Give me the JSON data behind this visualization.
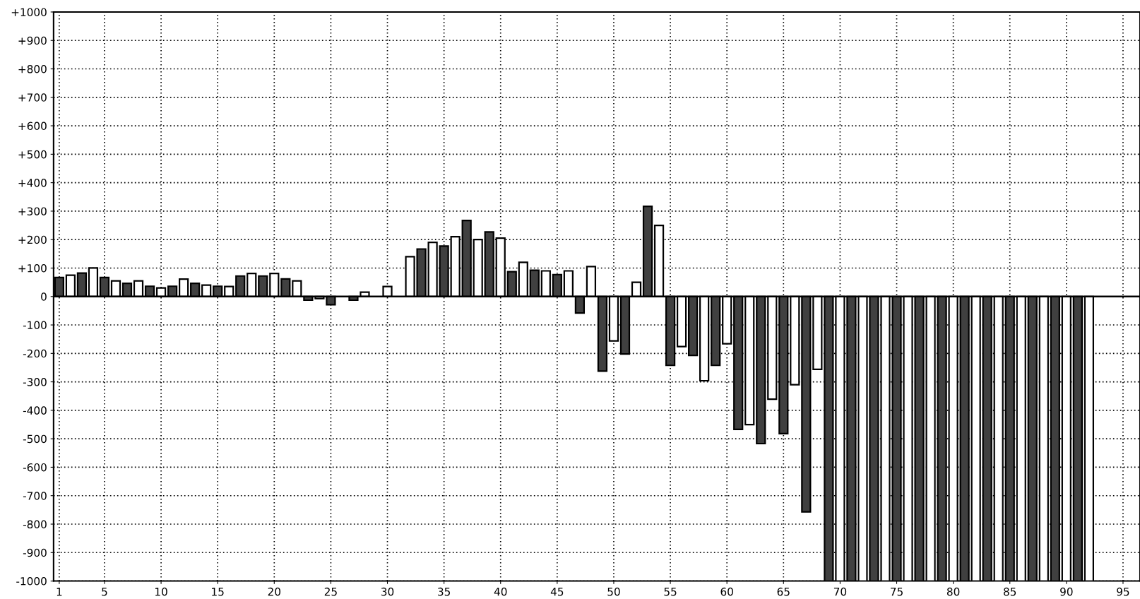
{
  "chart_data": {
    "type": "bar",
    "x": [
      1,
      2,
      3,
      4,
      5,
      6,
      7,
      8,
      9,
      10,
      11,
      12,
      13,
      14,
      15,
      16,
      17,
      18,
      19,
      20,
      21,
      22,
      23,
      24,
      25,
      26,
      27,
      28,
      29,
      30,
      31,
      32,
      33,
      34,
      35,
      36,
      37,
      38,
      39,
      40,
      41,
      42,
      43,
      44,
      45,
      46,
      47,
      48,
      49,
      50,
      51,
      52,
      53,
      54,
      55,
      56,
      57,
      58,
      59,
      60,
      61,
      62,
      63,
      64,
      65,
      66,
      67,
      68,
      69,
      70,
      71,
      72,
      73,
      74,
      75,
      76,
      77,
      78,
      79,
      80,
      81,
      82,
      83,
      84,
      85,
      86,
      87,
      88,
      89,
      90,
      91,
      92
    ],
    "values": [
      67,
      75,
      82,
      100,
      67,
      55,
      46,
      55,
      36,
      30,
      36,
      61,
      46,
      40,
      36,
      35,
      72,
      81,
      72,
      81,
      62,
      55,
      -13,
      -7,
      -29,
      null,
      -13,
      15,
      null,
      35,
      null,
      140,
      167,
      190,
      177,
      210,
      267,
      200,
      227,
      205,
      87,
      120,
      92,
      90,
      77,
      90,
      -58,
      105,
      -262,
      -156,
      -202,
      50,
      317,
      250,
      -242,
      -176,
      -207,
      -296,
      -242,
      -166,
      -467,
      -450,
      -517,
      -361,
      -482,
      -310,
      -757,
      -256,
      -1000,
      -1000,
      -1000,
      -1000,
      -1000,
      -1000,
      -1000,
      -1000,
      -1000,
      -1000,
      -1000,
      -1000,
      -1000,
      -1000,
      -1000,
      -1000,
      -1000,
      -1000,
      -1000,
      -1000,
      -1000,
      -1000,
      -1000,
      -1000
    ],
    "colors": [
      "#404040",
      "#ffffff",
      "#404040",
      "#ffffff",
      "#404040",
      "#ffffff",
      "#404040",
      "#ffffff",
      "#404040",
      "#ffffff",
      "#404040",
      "#ffffff",
      "#404040",
      "#ffffff",
      "#404040",
      "#ffffff",
      "#404040",
      "#ffffff",
      "#404040",
      "#ffffff",
      "#404040",
      "#ffffff",
      "#404040",
      "#ffffff",
      "#404040",
      "#ffffff",
      "#404040",
      "#ffffff",
      "#404040",
      "#ffffff",
      "#404040",
      "#ffffff",
      "#404040",
      "#ffffff",
      "#404040",
      "#ffffff",
      "#404040",
      "#ffffff",
      "#404040",
      "#ffffff",
      "#404040",
      "#ffffff",
      "#404040",
      "#ffffff",
      "#404040",
      "#ffffff",
      "#404040",
      "#ffffff",
      "#404040",
      "#ffffff",
      "#404040",
      "#ffffff",
      "#404040",
      "#ffffff",
      "#404040",
      "#ffffff",
      "#404040",
      "#ffffff",
      "#404040",
      "#ffffff",
      "#404040",
      "#ffffff",
      "#404040",
      "#ffffff",
      "#404040",
      "#ffffff",
      "#404040",
      "#ffffff",
      "#404040",
      "#ffffff",
      "#404040",
      "#ffffff",
      "#404040",
      "#ffffff",
      "#404040",
      "#ffffff",
      "#404040",
      "#ffffff",
      "#404040",
      "#ffffff",
      "#404040",
      "#ffffff",
      "#404040",
      "#ffffff",
      "#404040",
      "#ffffff",
      "#404040",
      "#ffffff",
      "#404040",
      "#ffffff",
      "#404040",
      "#ffffff"
    ],
    "xlim": [
      0.5,
      96.5
    ],
    "xticks": [
      1,
      5,
      10,
      15,
      20,
      25,
      30,
      35,
      40,
      45,
      50,
      55,
      60,
      65,
      70,
      75,
      80,
      85,
      90,
      95
    ],
    "ylim": [
      -1000,
      1000
    ],
    "yticks": [
      {
        "value": -1000,
        "label": "-1000"
      },
      {
        "value": -900,
        "label": "-900"
      },
      {
        "value": -800,
        "label": "-800"
      },
      {
        "value": -700,
        "label": "-700"
      },
      {
        "value": -600,
        "label": "-600"
      },
      {
        "value": -500,
        "label": "-500"
      },
      {
        "value": -400,
        "label": "-400"
      },
      {
        "value": -300,
        "label": "-300"
      },
      {
        "value": -200,
        "label": "-200"
      },
      {
        "value": -100,
        "label": "-100"
      },
      0,
      {
        "value": 100,
        "label": "+100"
      },
      {
        "value": 200,
        "label": "+200"
      },
      {
        "value": 300,
        "label": "+300"
      },
      {
        "value": 400,
        "label": "+400"
      },
      {
        "value": 500,
        "label": "+500"
      },
      {
        "value": 600,
        "label": "+600"
      },
      {
        "value": 700,
        "label": "+700"
      },
      {
        "value": 800,
        "label": "+800"
      },
      {
        "value": 900,
        "label": "+900"
      },
      {
        "value": 1000,
        "label": "+1000"
      }
    ],
    "ref_lines": [
      {
        "axis": "y",
        "value": 0,
        "color": "#000000",
        "line_style": "solid"
      }
    ],
    "grid": true
  }
}
